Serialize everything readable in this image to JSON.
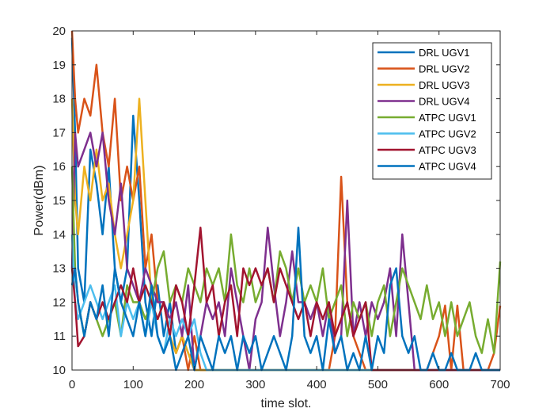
{
  "chart_data": {
    "type": "line",
    "title": "",
    "xlabel": "time slot.",
    "ylabel": "Power(dBm)",
    "xlim": [
      0,
      700
    ],
    "ylim": [
      10,
      20
    ],
    "xticks": [
      0,
      100,
      200,
      300,
      400,
      500,
      600,
      700
    ],
    "yticks": [
      10,
      11,
      12,
      13,
      14,
      15,
      16,
      17,
      18,
      19,
      20
    ],
    "grid": false,
    "legend_position": "top-right",
    "series": [
      {
        "name": "DRL UGV1",
        "color": "#0072BD",
        "x": [
          0,
          5,
          10,
          20,
          30,
          40,
          50,
          60,
          70,
          80,
          90,
          100,
          110,
          120,
          130,
          140,
          150,
          160,
          170,
          180,
          190,
          200,
          210,
          220,
          700
        ],
        "y": [
          19.8,
          17,
          13,
          12,
          16.5,
          15.5,
          14,
          16,
          13,
          12,
          13,
          17.5,
          15,
          12,
          11,
          12.5,
          11,
          12,
          10.5,
          11,
          10.5,
          10,
          10,
          10,
          10
        ]
      },
      {
        "name": "DRL UGV2",
        "color": "#D95319",
        "x": [
          0,
          5,
          10,
          20,
          30,
          40,
          50,
          60,
          70,
          80,
          90,
          100,
          110,
          120,
          130,
          140,
          150,
          160,
          170,
          180,
          190,
          200,
          210,
          220,
          230,
          240,
          260,
          280,
          300,
          320,
          340,
          360,
          380,
          400,
          420,
          430,
          440,
          450,
          460,
          480,
          500,
          520,
          540,
          560,
          580,
          600,
          610,
          620,
          630,
          640,
          650,
          660,
          680,
          690,
          700
        ],
        "y": [
          20,
          18,
          17,
          18,
          17.5,
          19,
          17,
          16,
          18,
          15,
          16,
          15,
          16,
          13,
          14,
          12,
          12,
          11,
          10.5,
          11,
          10,
          11,
          10,
          10,
          10,
          10,
          10,
          10,
          10,
          10,
          10,
          10,
          10,
          10,
          10,
          11,
          15.7,
          12,
          11,
          10,
          10,
          10,
          10,
          10,
          10,
          11,
          11.9,
          10,
          11.9,
          10,
          10,
          10,
          10,
          10.5,
          11.9
        ]
      },
      {
        "name": "DRL UGV3",
        "color": "#EDB120",
        "x": [
          0,
          5,
          10,
          20,
          30,
          40,
          50,
          60,
          70,
          80,
          90,
          100,
          110,
          120,
          130,
          140,
          150,
          160,
          170,
          180,
          190,
          200,
          210,
          220,
          700
        ],
        "y": [
          18,
          15,
          14,
          16,
          15,
          16.5,
          15,
          15.5,
          14,
          13,
          14,
          15,
          18,
          15,
          12,
          11.5,
          12,
          11,
          10.5,
          11,
          10.5,
          10,
          10,
          10,
          10
        ]
      },
      {
        "name": "DRL UGV4",
        "color": "#7E2F8E",
        "x": [
          0,
          5,
          10,
          20,
          30,
          40,
          50,
          60,
          70,
          80,
          90,
          100,
          110,
          120,
          130,
          140,
          150,
          160,
          170,
          180,
          190,
          200,
          210,
          220,
          230,
          240,
          250,
          260,
          270,
          280,
          290,
          300,
          310,
          320,
          330,
          340,
          350,
          360,
          370,
          380,
          390,
          400,
          410,
          420,
          430,
          440,
          450,
          460,
          470,
          480,
          490,
          500,
          510,
          520,
          530,
          540,
          550,
          560,
          570,
          580,
          700
        ],
        "y": [
          13,
          17,
          16,
          16.5,
          17,
          16,
          17,
          15,
          14,
          15.5,
          13,
          12.5,
          12,
          13,
          12.5,
          12,
          12,
          11.5,
          12,
          11,
          12.5,
          10,
          11,
          12,
          11.5,
          12,
          11,
          13,
          12,
          11,
          10,
          11.5,
          12,
          14.2,
          12.5,
          11,
          12,
          13.5,
          12,
          12,
          11.5,
          12,
          11,
          12,
          10.5,
          11,
          15,
          11,
          12,
          11,
          12,
          11.5,
          12,
          13,
          11,
          14,
          12,
          10,
          10,
          10,
          10
        ]
      },
      {
        "name": "ATPC UGV1",
        "color": "#77AC30",
        "x": [
          0,
          5,
          10,
          20,
          30,
          40,
          50,
          60,
          70,
          80,
          90,
          100,
          110,
          120,
          130,
          140,
          150,
          160,
          170,
          180,
          190,
          200,
          210,
          220,
          230,
          240,
          250,
          260,
          270,
          280,
          290,
          300,
          310,
          320,
          330,
          340,
          350,
          360,
          370,
          380,
          390,
          400,
          410,
          420,
          430,
          440,
          450,
          460,
          470,
          480,
          490,
          500,
          510,
          520,
          530,
          540,
          550,
          560,
          570,
          580,
          590,
          600,
          610,
          620,
          630,
          640,
          650,
          660,
          670,
          680,
          690,
          700
        ],
        "y": [
          16,
          13,
          12,
          11,
          12,
          11.5,
          11,
          11.5,
          12,
          11,
          12.5,
          12,
          12,
          11.5,
          12,
          13,
          13.5,
          12,
          12.5,
          12,
          13,
          12.5,
          12,
          13,
          12.5,
          13,
          12,
          14,
          12.5,
          12,
          13,
          12,
          12.5,
          13,
          12,
          13.5,
          13,
          12,
          13,
          12,
          12.5,
          12,
          13,
          11.5,
          12,
          12.5,
          11,
          12,
          11.5,
          12,
          11,
          12,
          12.5,
          11,
          12,
          13,
          12.5,
          12,
          11.5,
          12.5,
          11.5,
          12,
          11,
          12,
          11,
          11.5,
          12,
          11,
          10.5,
          11.5,
          10.5,
          13.2
        ]
      },
      {
        "name": "ATPC UGV2",
        "color": "#4DBEEE",
        "x": [
          0,
          5,
          10,
          20,
          30,
          40,
          50,
          60,
          70,
          80,
          90,
          100,
          110,
          120,
          130,
          140,
          150,
          160,
          170,
          180,
          190,
          200,
          210,
          220,
          230,
          700
        ],
        "y": [
          14,
          12,
          11.5,
          12,
          12.5,
          12,
          11.5,
          12,
          12.5,
          11,
          12,
          11.5,
          12,
          11,
          12,
          11,
          10.5,
          11.5,
          11,
          11.5,
          11,
          11.5,
          10.5,
          10,
          10,
          10
        ]
      },
      {
        "name": "ATPC UGV3",
        "color": "#A2142F",
        "x": [
          0,
          5,
          10,
          20,
          30,
          40,
          50,
          60,
          70,
          80,
          90,
          100,
          110,
          120,
          130,
          140,
          150,
          160,
          170,
          180,
          190,
          200,
          210,
          220,
          230,
          240,
          250,
          260,
          270,
          280,
          290,
          300,
          310,
          320,
          330,
          340,
          350,
          360,
          370,
          380,
          390,
          400,
          410,
          420,
          430,
          440,
          450,
          460,
          470,
          480,
          490,
          500,
          510,
          520,
          530,
          540,
          700
        ],
        "y": [
          13,
          12,
          10.7,
          11,
          12,
          11.5,
          12,
          11.5,
          12,
          12.5,
          12,
          13,
          12,
          12.5,
          12,
          11.5,
          12,
          11,
          12.5,
          12,
          11,
          12.5,
          14.2,
          12,
          12.5,
          11,
          12,
          12.5,
          11,
          13,
          12.5,
          13,
          12.5,
          13,
          12,
          13,
          12.5,
          12,
          11.5,
          12,
          11,
          12,
          11.5,
          12,
          11,
          11.5,
          12,
          11,
          11.5,
          12,
          10,
          10,
          10,
          10,
          10,
          10,
          10
        ]
      },
      {
        "name": "ATPC UGV4",
        "color": "#0072BD",
        "x": [
          0,
          5,
          10,
          20,
          30,
          40,
          50,
          60,
          70,
          80,
          90,
          100,
          110,
          120,
          130,
          140,
          150,
          160,
          170,
          180,
          190,
          200,
          210,
          220,
          230,
          240,
          250,
          260,
          270,
          280,
          290,
          300,
          310,
          320,
          330,
          340,
          350,
          360,
          370,
          380,
          390,
          400,
          410,
          420,
          430,
          440,
          450,
          460,
          470,
          480,
          490,
          500,
          510,
          520,
          530,
          540,
          550,
          560,
          570,
          580,
          590,
          600,
          610,
          620,
          630,
          640,
          650,
          660,
          670,
          680,
          690,
          700
        ],
        "y": [
          12.5,
          13,
          12,
          11,
          12,
          11.5,
          12.5,
          11,
          13,
          12,
          11.5,
          11,
          12,
          11,
          12.5,
          11,
          10.5,
          11,
          10,
          10.5,
          11,
          10,
          11,
          10.5,
          10,
          11,
          10.5,
          11,
          10,
          11,
          10.5,
          11,
          10,
          10.5,
          11,
          10.5,
          10,
          11,
          14.2,
          11,
          10.5,
          11,
          10,
          11.5,
          10.5,
          11,
          10,
          10.5,
          10,
          11,
          10,
          11,
          10.5,
          12.5,
          13,
          11,
          10.5,
          11,
          10,
          10,
          10.5,
          10,
          10,
          10.5,
          10,
          10,
          10,
          10.5,
          10,
          10,
          10,
          10
        ]
      }
    ]
  }
}
